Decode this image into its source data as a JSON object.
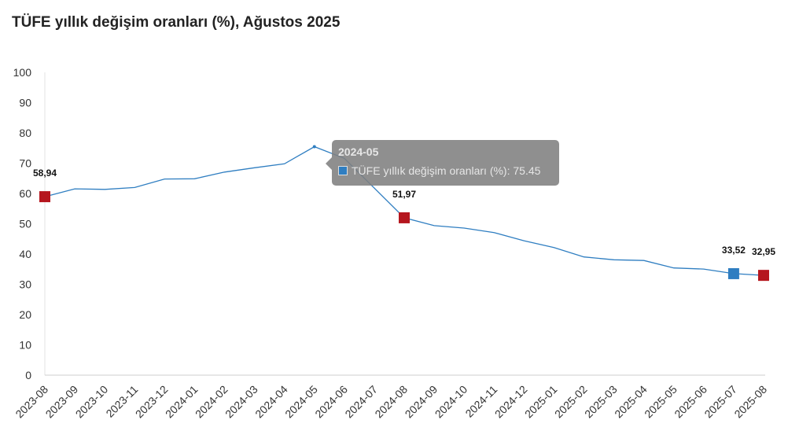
{
  "title": "TÜFE yıllık değişim oranları (%), Ağustos 2025",
  "chart_data": {
    "type": "line",
    "title": "TÜFE yıllık değişim oranları (%), Ağustos 2025",
    "xlabel": "",
    "ylabel": "",
    "ylim": [
      0,
      100
    ],
    "yticks": [
      "0",
      "10",
      "20",
      "30",
      "40",
      "50",
      "60",
      "70",
      "80",
      "90",
      "100"
    ],
    "categories": [
      "2023-08",
      "2023-09",
      "2023-10",
      "2023-11",
      "2023-12",
      "2024-01",
      "2024-02",
      "2024-03",
      "2024-04",
      "2024-05",
      "2024-06",
      "2024-07",
      "2024-08",
      "2024-09",
      "2024-10",
      "2024-11",
      "2024-12",
      "2025-01",
      "2025-02",
      "2025-03",
      "2025-04",
      "2025-05",
      "2025-06",
      "2025-07",
      "2025-08"
    ],
    "series": [
      {
        "name": "TÜFE yıllık değişim oranları (%)",
        "color": "#2f7ec1",
        "values": [
          58.94,
          61.53,
          61.36,
          61.98,
          64.77,
          64.86,
          67.07,
          68.5,
          69.8,
          75.45,
          71.6,
          61.78,
          51.97,
          49.38,
          48.58,
          47.09,
          44.38,
          42.12,
          39.05,
          38.1,
          37.86,
          35.41,
          35.05,
          33.52,
          32.95
        ]
      }
    ],
    "grid": false,
    "legend": "none",
    "highlighted_points": [
      {
        "category": "2023-08",
        "label": "58,94",
        "color": "#b5161e"
      },
      {
        "category": "2024-08",
        "label": "51,97",
        "color": "#b5161e"
      },
      {
        "category": "2025-07",
        "label": "33,52",
        "color": "#2f7ec1"
      },
      {
        "category": "2025-08",
        "label": "32,95",
        "color": "#b5161e"
      }
    ]
  },
  "tooltip": {
    "title": "2024-05",
    "text": "TÜFE yıllık değişim oranları (%): 75.45"
  }
}
